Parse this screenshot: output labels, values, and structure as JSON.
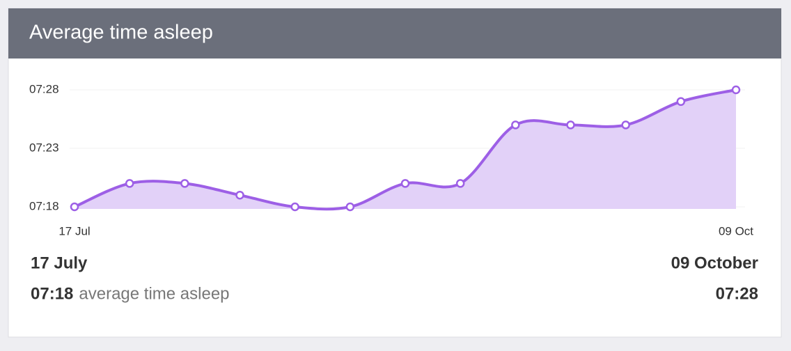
{
  "header": {
    "title": "Average time asleep"
  },
  "chart_data": {
    "type": "area",
    "categories": [
      "17 Jul",
      null,
      null,
      null,
      null,
      null,
      null,
      null,
      null,
      null,
      null,
      null,
      "09 Oct"
    ],
    "values": [
      438,
      440,
      440,
      439,
      438,
      438,
      440,
      440,
      445,
      445,
      445,
      447,
      448
    ],
    "color": "#9d5fe6",
    "fill": "#e2d1f8",
    "ylim": [
      438,
      448
    ],
    "yticks": [
      {
        "value": 438,
        "label": "07:18"
      },
      {
        "value": 443,
        "label": "07:23"
      },
      {
        "value": 448,
        "label": "07:28"
      }
    ],
    "grid": true
  },
  "footer": {
    "start_date": "17 July",
    "start_value": "07:18",
    "start_caption": "average time asleep",
    "end_date": "09 October",
    "end_value": "07:28"
  }
}
